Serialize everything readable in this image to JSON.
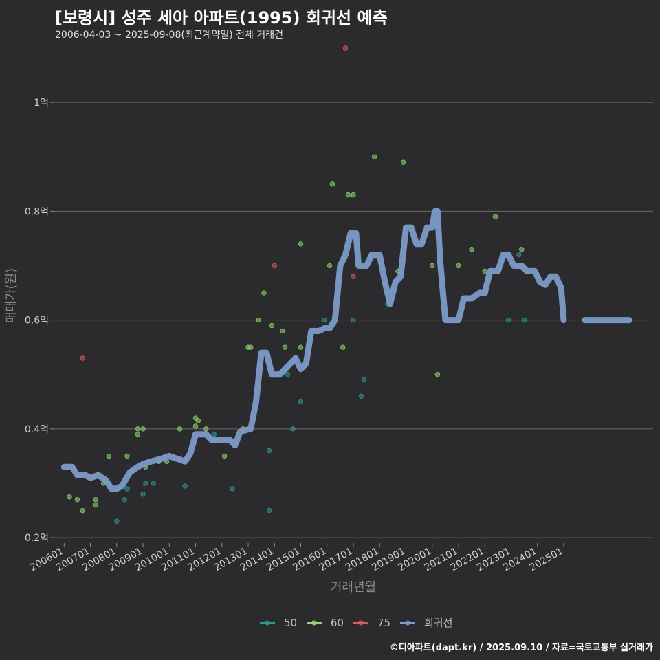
{
  "title": "[보령시] 성주 세아 아파트(1995) 회귀선 예측",
  "subtitle": "2006-04-03 ~ 2025-09-08(최근계약일) 전체 거래건",
  "caption": "©디아파트(dapt.kr) / 2025.09.10 / 자료=국토교통부 실거래가",
  "chart_data": {
    "type": "scatter",
    "xlabel": "거래년월",
    "ylabel": "매매가(원)",
    "xlim": [
      2005.6,
      2028.4
    ],
    "ylim": [
      0.19,
      1.1
    ],
    "x_ticks": [
      "200601",
      "200701",
      "200801",
      "200901",
      "201001",
      "201101",
      "201201",
      "201301",
      "201401",
      "201501",
      "201601",
      "201701",
      "201801",
      "201901",
      "202001",
      "202101",
      "202201",
      "202301",
      "202401",
      "202501"
    ],
    "y_ticks": [
      {
        "value": 0.2,
        "label": "0.2억"
      },
      {
        "value": 0.4,
        "label": "0.4억"
      },
      {
        "value": 0.6,
        "label": "0.6억"
      },
      {
        "value": 0.8,
        "label": "0.8억"
      },
      {
        "value": 1.0,
        "label": "1억"
      }
    ],
    "grid": true,
    "legend_position": "bottom",
    "legend": [
      {
        "label": "50",
        "color": "#2a9d8f"
      },
      {
        "label": "60",
        "color": "#8ddc6a"
      },
      {
        "label": "75",
        "color": "#e05a5a"
      },
      {
        "label": "회귀선",
        "color": "#7b9bc8"
      }
    ],
    "series": [
      {
        "name": "50",
        "color": "#2a9d8f",
        "points": [
          [
            2008.0,
            0.23
          ],
          [
            2008.3,
            0.27
          ],
          [
            2008.4,
            0.29
          ],
          [
            2009.0,
            0.28
          ],
          [
            2009.1,
            0.3
          ],
          [
            2009.4,
            0.3
          ],
          [
            2009.6,
            0.34
          ],
          [
            2010.6,
            0.295
          ],
          [
            2011.7,
            0.39
          ],
          [
            2011.8,
            0.38
          ],
          [
            2012.4,
            0.29
          ],
          [
            2013.8,
            0.36
          ],
          [
            2013.8,
            0.25
          ],
          [
            2014.5,
            0.5
          ],
          [
            2014.7,
            0.4
          ],
          [
            2015.0,
            0.45
          ],
          [
            2015.9,
            0.6
          ],
          [
            2017.0,
            0.6
          ],
          [
            2017.3,
            0.46
          ],
          [
            2017.4,
            0.49
          ],
          [
            2018.3,
            0.63
          ],
          [
            2022.9,
            0.6
          ],
          [
            2023.3,
            0.72
          ],
          [
            2023.5,
            0.6
          ]
        ]
      },
      {
        "name": "60",
        "color": "#8ddc6a",
        "points": [
          [
            2006.2,
            0.275
          ],
          [
            2006.5,
            0.27
          ],
          [
            2006.7,
            0.25
          ],
          [
            2007.2,
            0.26
          ],
          [
            2007.2,
            0.27
          ],
          [
            2007.5,
            0.3
          ],
          [
            2007.7,
            0.35
          ],
          [
            2008.4,
            0.35
          ],
          [
            2008.8,
            0.39
          ],
          [
            2008.8,
            0.4
          ],
          [
            2009.0,
            0.4
          ],
          [
            2009.1,
            0.33
          ],
          [
            2009.6,
            0.34
          ],
          [
            2009.9,
            0.34
          ],
          [
            2010.4,
            0.4
          ],
          [
            2011.0,
            0.405
          ],
          [
            2011.0,
            0.42
          ],
          [
            2011.1,
            0.415
          ],
          [
            2011.4,
            0.4
          ],
          [
            2012.1,
            0.35
          ],
          [
            2012.8,
            0.4
          ],
          [
            2013.0,
            0.55
          ],
          [
            2013.1,
            0.55
          ],
          [
            2013.4,
            0.6
          ],
          [
            2013.6,
            0.65
          ],
          [
            2013.9,
            0.59
          ],
          [
            2014.3,
            0.58
          ],
          [
            2014.4,
            0.55
          ],
          [
            2015.0,
            0.55
          ],
          [
            2015.0,
            0.74
          ],
          [
            2016.1,
            0.7
          ],
          [
            2016.2,
            0.85
          ],
          [
            2016.6,
            0.55
          ],
          [
            2016.8,
            0.83
          ],
          [
            2017.0,
            0.83
          ],
          [
            2017.8,
            0.9
          ],
          [
            2018.7,
            0.69
          ],
          [
            2018.9,
            0.89
          ],
          [
            2020.0,
            0.7
          ],
          [
            2020.2,
            0.5
          ],
          [
            2021.0,
            0.7
          ],
          [
            2021.5,
            0.73
          ],
          [
            2022.0,
            0.69
          ],
          [
            2022.4,
            0.79
          ],
          [
            2023.4,
            0.73
          ]
        ]
      },
      {
        "name": "75",
        "color": "#e05a5a",
        "points": [
          [
            2006.7,
            0.53
          ],
          [
            2014.0,
            0.7
          ],
          [
            2016.7,
            1.1
          ],
          [
            2017.0,
            0.68
          ]
        ]
      },
      {
        "name": "회귀선",
        "color": "#7b9bc8",
        "line": [
          [
            2006.0,
            0.33
          ],
          [
            2006.3,
            0.33
          ],
          [
            2006.5,
            0.315
          ],
          [
            2006.8,
            0.315
          ],
          [
            2007.0,
            0.31
          ],
          [
            2007.3,
            0.315
          ],
          [
            2007.6,
            0.305
          ],
          [
            2007.8,
            0.29
          ],
          [
            2008.0,
            0.29
          ],
          [
            2008.2,
            0.295
          ],
          [
            2008.5,
            0.32
          ],
          [
            2008.8,
            0.33
          ],
          [
            2009.0,
            0.335
          ],
          [
            2009.3,
            0.34
          ],
          [
            2009.7,
            0.345
          ],
          [
            2010.0,
            0.35
          ],
          [
            2010.3,
            0.345
          ],
          [
            2010.6,
            0.34
          ],
          [
            2010.8,
            0.355
          ],
          [
            2011.0,
            0.39
          ],
          [
            2011.4,
            0.39
          ],
          [
            2011.6,
            0.38
          ],
          [
            2012.0,
            0.38
          ],
          [
            2012.3,
            0.38
          ],
          [
            2012.5,
            0.37
          ],
          [
            2012.7,
            0.395
          ],
          [
            2013.1,
            0.4
          ],
          [
            2013.3,
            0.45
          ],
          [
            2013.5,
            0.54
          ],
          [
            2013.7,
            0.54
          ],
          [
            2013.9,
            0.5
          ],
          [
            2014.2,
            0.5
          ],
          [
            2014.5,
            0.515
          ],
          [
            2014.8,
            0.53
          ],
          [
            2015.0,
            0.51
          ],
          [
            2015.2,
            0.52
          ],
          [
            2015.4,
            0.58
          ],
          [
            2015.7,
            0.58
          ],
          [
            2015.9,
            0.585
          ],
          [
            2016.1,
            0.585
          ],
          [
            2016.3,
            0.6
          ],
          [
            2016.5,
            0.7
          ],
          [
            2016.7,
            0.72
          ],
          [
            2016.9,
            0.76
          ],
          [
            2017.1,
            0.76
          ],
          [
            2017.2,
            0.7
          ],
          [
            2017.5,
            0.7
          ],
          [
            2017.7,
            0.72
          ],
          [
            2018.0,
            0.72
          ],
          [
            2018.2,
            0.67
          ],
          [
            2018.4,
            0.63
          ],
          [
            2018.6,
            0.67
          ],
          [
            2018.8,
            0.68
          ],
          [
            2019.0,
            0.77
          ],
          [
            2019.2,
            0.77
          ],
          [
            2019.4,
            0.74
          ],
          [
            2019.6,
            0.74
          ],
          [
            2019.8,
            0.77
          ],
          [
            2020.0,
            0.77
          ],
          [
            2020.1,
            0.8
          ],
          [
            2020.2,
            0.8
          ],
          [
            2020.3,
            0.71
          ],
          [
            2020.5,
            0.6
          ],
          [
            2020.7,
            0.6
          ],
          [
            2021.0,
            0.6
          ],
          [
            2021.2,
            0.64
          ],
          [
            2021.5,
            0.64
          ],
          [
            2021.8,
            0.65
          ],
          [
            2022.0,
            0.65
          ],
          [
            2022.2,
            0.69
          ],
          [
            2022.5,
            0.69
          ],
          [
            2022.7,
            0.72
          ],
          [
            2022.9,
            0.72
          ],
          [
            2023.1,
            0.7
          ],
          [
            2023.4,
            0.7
          ],
          [
            2023.6,
            0.69
          ],
          [
            2023.9,
            0.69
          ],
          [
            2024.1,
            0.67
          ],
          [
            2024.3,
            0.665
          ],
          [
            2024.5,
            0.68
          ],
          [
            2024.7,
            0.68
          ],
          [
            2024.9,
            0.66
          ],
          [
            2025.0,
            0.6
          ]
        ]
      },
      {
        "name": "회귀선",
        "color": "#7b9bc8",
        "line": [
          [
            2025.8,
            0.6
          ],
          [
            2027.5,
            0.6
          ]
        ]
      }
    ]
  }
}
